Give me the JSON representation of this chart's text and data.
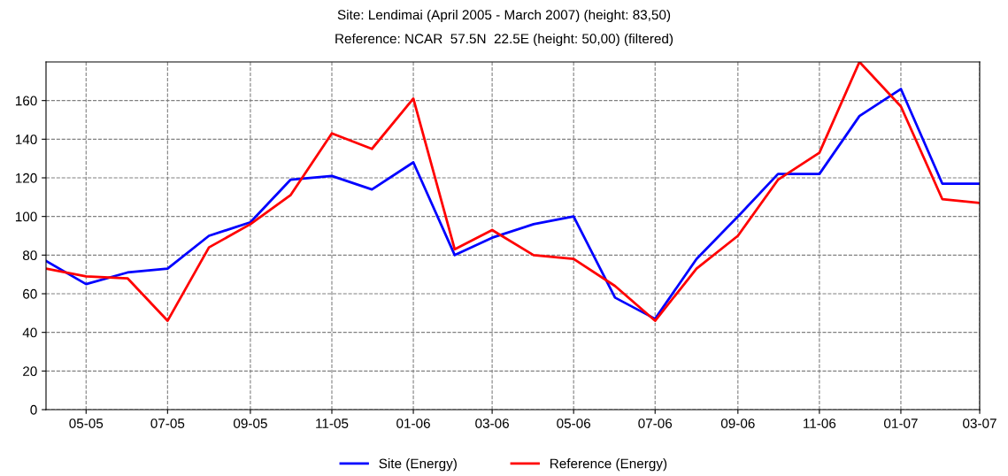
{
  "chart_data": {
    "type": "line",
    "title": "Site: Lendimai (April 2005 - March 2007) (height: 83,50)",
    "subtitle": "Reference: NCAR  57.5N  22.5E (height: 50,00) (filtered)",
    "x": [
      "2005-04",
      "2005-05",
      "2005-06",
      "2005-07",
      "2005-08",
      "2005-09",
      "2005-10",
      "2005-11",
      "2005-12",
      "2006-01",
      "2006-02",
      "2006-03",
      "2006-04",
      "2006-05",
      "2006-06",
      "2006-07",
      "2006-08",
      "2006-09",
      "2006-10",
      "2006-11",
      "2006-12",
      "2007-01",
      "2007-02",
      "2007-03"
    ],
    "series": [
      {
        "name": "Site (Energy)",
        "color": "#0000ff",
        "values": [
          77,
          65,
          71,
          73,
          90,
          97,
          119,
          121,
          114,
          128,
          80,
          89,
          96,
          100,
          58,
          47,
          78,
          100,
          122,
          122,
          152,
          166,
          117,
          117
        ]
      },
      {
        "name": "Reference (Energy)",
        "color": "#ff0000",
        "values": [
          73,
          69,
          68,
          46,
          84,
          96,
          111,
          143,
          135,
          161,
          83,
          93,
          80,
          78,
          64,
          46,
          73,
          90,
          119,
          133,
          180,
          157,
          109,
          107
        ]
      }
    ],
    "xlim": [
      "2005-04",
      "2007-03"
    ],
    "xticks": [
      {
        "value": "2005-05",
        "label": "05-05"
      },
      {
        "value": "2005-07",
        "label": "07-05"
      },
      {
        "value": "2005-09",
        "label": "09-05"
      },
      {
        "value": "2005-11",
        "label": "11-05"
      },
      {
        "value": "2006-01",
        "label": "01-06"
      },
      {
        "value": "2006-03",
        "label": "03-06"
      },
      {
        "value": "2006-05",
        "label": "05-06"
      },
      {
        "value": "2006-07",
        "label": "07-06"
      },
      {
        "value": "2006-09",
        "label": "09-06"
      },
      {
        "value": "2006-11",
        "label": "11-06"
      },
      {
        "value": "2007-01",
        "label": "01-07"
      },
      {
        "value": "2007-03",
        "label": "03-07"
      }
    ],
    "ylim": [
      0,
      180
    ],
    "yticks": [
      0,
      20,
      40,
      60,
      80,
      100,
      120,
      140,
      160
    ],
    "grid": true,
    "legend": "bottom",
    "marker": "none",
    "line_style": "solid"
  }
}
